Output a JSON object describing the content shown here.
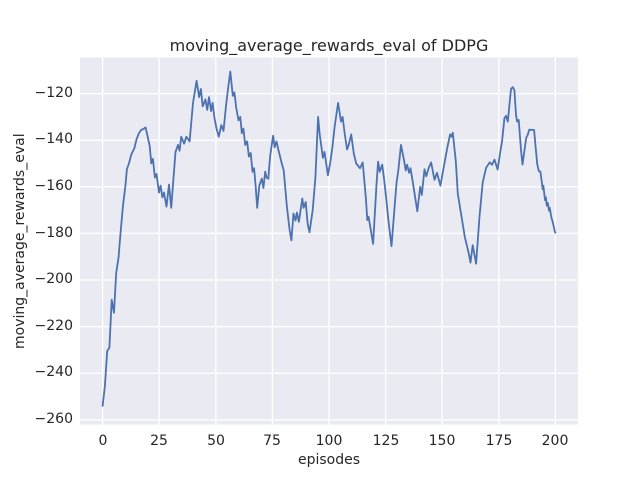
{
  "style": {
    "figure_background": "#FFFFFF",
    "axes_background": "#EAEAF2",
    "grid_color": "#FFFFFF",
    "line_color": "#4C72B0",
    "text_color": "#262626"
  },
  "chart_data": {
    "type": "line",
    "title": "moving_average_rewards_eval of DDPG",
    "xlabel": "episodes",
    "ylabel": "moving_average_rewards_eval",
    "grid": true,
    "legend": null,
    "xlim": [
      -10,
      210
    ],
    "ylim": [
      -262,
      -104.5
    ],
    "xticks": [
      0,
      25,
      50,
      75,
      100,
      125,
      150,
      175,
      200
    ],
    "yticks": [
      -120,
      -140,
      -160,
      -180,
      -200,
      -220,
      -240,
      -260
    ],
    "xtick_labels": [
      "0",
      "25",
      "50",
      "75",
      "100",
      "125",
      "150",
      "175",
      "200"
    ],
    "ytick_labels": [
      "−120",
      "−140",
      "−160",
      "−180",
      "−200",
      "−220",
      "−240",
      "−260"
    ],
    "series": [
      {
        "name": "moving_average_rewards_eval",
        "color": "#4C72B0",
        "x": [
          0,
          1,
          2,
          3,
          4,
          5,
          6,
          7,
          8,
          9,
          10,
          10.7,
          11.6,
          12.7,
          14,
          15,
          16,
          17,
          18,
          19,
          20.8,
          21.5,
          22.2,
          23.1,
          23.8,
          24.9,
          25.6,
          26.4,
          27.1,
          28.2,
          29.3,
          30.3,
          31.5,
          32.2,
          33.3,
          34,
          34.7,
          36,
          37,
          38.4,
          39.9,
          41.5,
          42.6,
          43.4,
          44.2,
          45.4,
          46.2,
          47,
          47.9,
          48.6,
          49.4,
          50.3,
          51.3,
          52.4,
          53.4,
          54.6,
          55.4,
          56.4,
          57.5,
          58.2,
          59,
          60,
          60.8,
          61.5,
          62.2,
          63,
          63.8,
          64.6,
          65.4,
          66.2,
          66.9,
          67.6,
          68.3,
          69.2,
          70.3,
          71,
          71.8,
          72.4,
          73.2,
          74,
          75.3,
          76,
          76.8,
          77.6,
          79,
          80,
          81.4,
          82.6,
          83.4,
          84.3,
          85.2,
          85.8,
          86.7,
          88.2,
          88.8,
          89.7,
          90.6,
          91.4,
          92.8,
          94,
          95.2,
          95.9,
          97.3,
          98,
          99.5,
          100.5,
          101.5,
          102.5,
          104,
          105.3,
          106,
          107,
          108,
          108.7,
          109.8,
          111,
          112,
          113.7,
          114.9,
          116.3,
          116.9,
          117.5,
          119.5,
          121,
          121.7,
          122.4,
          123.5,
          124.4,
          125.3,
          126.2,
          127.6,
          129.1,
          129.8,
          130.6,
          131.8,
          133.2,
          133.9,
          134.5,
          135.4,
          136,
          137,
          138.3,
          139,
          140.3,
          141,
          142.2,
          143,
          144,
          145.1,
          146.6,
          147.7,
          149.2,
          151,
          152.3,
          153.5,
          154.1,
          154.7,
          156,
          156.9,
          158.6,
          160,
          161.7,
          162.5,
          163.5,
          165,
          166.5,
          167.9,
          169.4,
          171,
          172,
          173.1,
          174.5,
          175.6,
          176.5,
          177.5,
          178.2,
          179,
          180.4,
          181.2,
          181.9,
          182.6,
          183.1,
          183.8,
          184.8,
          185.5,
          187.1,
          187.8,
          188.5,
          190.6,
          191.3,
          192,
          192.7,
          193.4,
          194,
          194.4,
          194.7,
          195.4,
          195.8,
          196.2,
          196.7,
          197.2,
          197.5,
          198.2,
          199,
          199.8,
          200
        ],
        "y": [
          -254,
          -245.5,
          -230.5,
          -229,
          -208.5,
          -214,
          -197,
          -190.5,
          -179,
          -168,
          -160,
          -152.5,
          -150,
          -146,
          -143.5,
          -139.5,
          -137,
          -135.6,
          -135.2,
          -134.5,
          -142.5,
          -150,
          -148,
          -156,
          -154.5,
          -162.5,
          -159.5,
          -164.5,
          -162.5,
          -168.5,
          -159,
          -169,
          -154,
          -145,
          -142,
          -144.5,
          -138.5,
          -141.5,
          -138.5,
          -140.5,
          -124,
          -114.5,
          -121.5,
          -118,
          -125.5,
          -122.5,
          -127,
          -121.5,
          -127.5,
          -124,
          -130.5,
          -135,
          -138.5,
          -133.5,
          -136,
          -124.5,
          -118,
          -110.5,
          -121,
          -119.5,
          -126,
          -131.5,
          -130,
          -137,
          -135,
          -142,
          -140.5,
          -147,
          -145.5,
          -153.5,
          -152,
          -160,
          -169,
          -159.5,
          -156.5,
          -160.5,
          -153.5,
          -156,
          -156.5,
          -147,
          -138,
          -143,
          -140.5,
          -144,
          -149.5,
          -153,
          -168.5,
          -178.5,
          -183,
          -171.5,
          -174.5,
          -171,
          -175,
          -165,
          -169,
          -166.5,
          -176,
          -179.5,
          -170,
          -156,
          -130,
          -137.5,
          -147.5,
          -145,
          -155,
          -150,
          -143,
          -134,
          -124,
          -132,
          -130,
          -137.5,
          -144,
          -142,
          -137.5,
          -146,
          -150,
          -152,
          -149.5,
          -165,
          -174.3,
          -172.9,
          -184.5,
          -159,
          -149.2,
          -153.5,
          -150.5,
          -157,
          -165.5,
          -174,
          -185.5,
          -167,
          -158.5,
          -153,
          -142,
          -149,
          -153,
          -150.5,
          -154,
          -152,
          -158,
          -166,
          -170.5,
          -160,
          -163.5,
          -152.5,
          -155.5,
          -152,
          -149.5,
          -157,
          -154,
          -159.5,
          -150,
          -143,
          -137.5,
          -138.5,
          -136.8,
          -149,
          -163,
          -173,
          -181.5,
          -188.5,
          -192.5,
          -185,
          -193,
          -172.8,
          -158.2,
          -151.8,
          -149.5,
          -150.5,
          -148.3,
          -152.6,
          -145.5,
          -140,
          -130.6,
          -129.5,
          -132,
          -118,
          -117.2,
          -118.6,
          -129.1,
          -132,
          -131.3,
          -144.1,
          -150.4,
          -139,
          -137.7,
          -135.5,
          -135.6,
          -143.4,
          -150.4,
          -153.2,
          -153.5,
          -158,
          -161,
          -159.5,
          -165.7,
          -164.5,
          -168.1,
          -167,
          -170.2,
          -169,
          -173,
          -175.8,
          -179.3,
          -179.7
        ]
      }
    ]
  }
}
